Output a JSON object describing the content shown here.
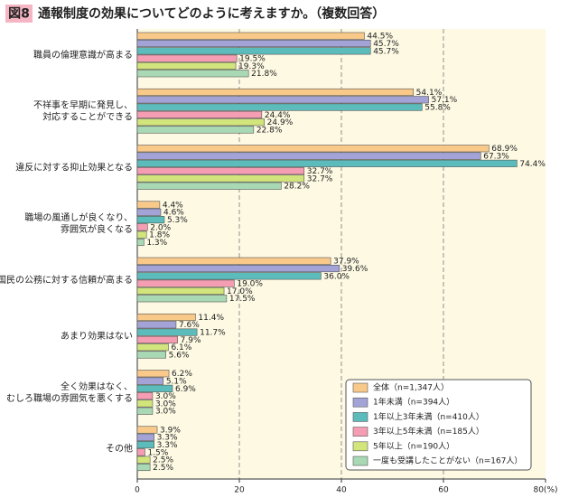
{
  "chart_data": {
    "type": "hbar",
    "figure_label": "図8",
    "title": "通報制度の効果についてどのように考えますか。（複数回答）",
    "categories": [
      "職員の倫理意識が高まる",
      "不祥事を早期に発見し、\n対応することができる",
      "違反に対する抑止効果となる",
      "職場の風通しが良くなり、\n雰囲気が良くなる",
      "国民の公務に対する信頼が高まる",
      "あまり効果はない",
      "全く効果はなく、\nむしろ職場の雰囲気を悪くする",
      "その他"
    ],
    "series": [
      {
        "name": "全体（n=1,347人）",
        "color": "#f9c98a",
        "values": [
          44.5,
          54.1,
          68.9,
          4.4,
          37.9,
          11.4,
          6.2,
          3.9
        ],
        "value_labels": [
          "44.5%",
          "54.1%",
          "68.9%",
          "4.4%",
          "37.9%",
          "11.4%",
          "6.2%",
          "3.9%"
        ]
      },
      {
        "name": "1年未満（n=394人）",
        "color": "#a3a3d8",
        "values": [
          45.7,
          57.1,
          67.3,
          4.6,
          39.6,
          7.6,
          5.1,
          3.3
        ],
        "value_labels": [
          "45.7%",
          "57.1%",
          "67.3%",
          "4.6%",
          "39.6%",
          "7.6%",
          "5.1%",
          "3.3%"
        ]
      },
      {
        "name": "1年以上3年未満（n=410人）",
        "color": "#5cbcbc",
        "values": [
          45.7,
          55.8,
          74.4,
          5.3,
          36.0,
          11.7,
          6.9,
          3.3
        ],
        "value_labels": [
          "45.7%",
          "55.8%",
          "74.4%",
          "5.3%",
          "36.0%",
          "11.7%",
          "6.9%",
          "3.3%"
        ]
      },
      {
        "name": "3年以上5年未満（n=185人）",
        "color": "#f59db2",
        "values": [
          19.5,
          24.4,
          32.7,
          2.0,
          19.0,
          7.9,
          3.0,
          1.5
        ],
        "value_labels": [
          "19.5%",
          "24.4%",
          "32.7%",
          "2.0%",
          "19.0%",
          "7.9%",
          "3.0%",
          "1.5%"
        ]
      },
      {
        "name": "5年以上（n=190人）",
        "color": "#d2e57c",
        "values": [
          19.3,
          24.9,
          32.7,
          1.8,
          17.0,
          6.1,
          3.0,
          2.5
        ],
        "value_labels": [
          "19.3%",
          "24.9%",
          "32.7%",
          "1.8%",
          "17.0%",
          "6.1%",
          "3.0%",
          "2.5%"
        ]
      },
      {
        "name": "一度も受講したことがない（n=167人）",
        "color": "#a9d9b4",
        "values": [
          21.8,
          22.8,
          28.2,
          1.3,
          17.5,
          5.6,
          3.0,
          2.5
        ],
        "value_labels": [
          "21.8%",
          "22.8%",
          "28.2%",
          "1.3%",
          "17.5%",
          "5.6%",
          "3.0%",
          "2.5%"
        ]
      }
    ],
    "xlim": [
      0,
      80
    ],
    "xticks": [
      0,
      20,
      40,
      60,
      {
        "value": 80,
        "label": "80(%)"
      }
    ],
    "grid": true,
    "legend": "lower-right"
  }
}
